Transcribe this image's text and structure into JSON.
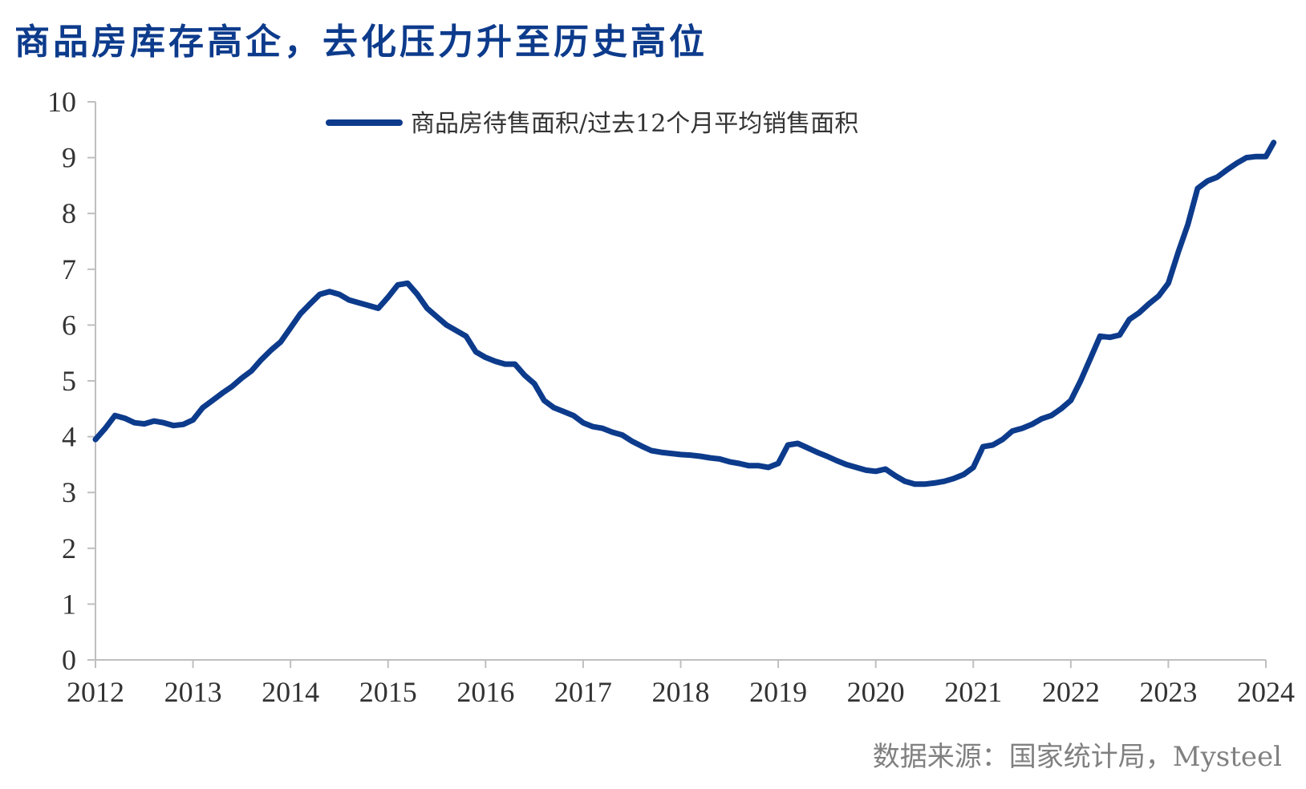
{
  "title": "商品房库存高企，去化压力升至历史高位",
  "source": "数据来源：国家统计局，Mysteel",
  "chart_data": {
    "type": "line",
    "xlabel": "",
    "ylabel": "",
    "ylim": [
      0,
      10
    ],
    "yticks": [
      "0",
      "1",
      "2",
      "3",
      "4",
      "5",
      "6",
      "7",
      "8",
      "9",
      "10"
    ],
    "xlim": [
      2012,
      2024
    ],
    "xticks": [
      "2012",
      "2013",
      "2014",
      "2015",
      "2016",
      "2017",
      "2018",
      "2019",
      "2020",
      "2021",
      "2022",
      "2023",
      "2024"
    ],
    "grid": false,
    "legend_position": "top",
    "series": [
      {
        "name": "商品房待售面积/过去12个月平均销售面积",
        "color": "#0d3b8c",
        "x": [
          2012.0,
          2012.1,
          2012.2,
          2012.3,
          2012.4,
          2012.5,
          2012.6,
          2012.7,
          2012.8,
          2012.9,
          2013.0,
          2013.1,
          2013.2,
          2013.3,
          2013.4,
          2013.5,
          2013.6,
          2013.7,
          2013.8,
          2013.9,
          2014.0,
          2014.1,
          2014.2,
          2014.3,
          2014.4,
          2014.5,
          2014.6,
          2014.7,
          2014.8,
          2014.9,
          2015.0,
          2015.1,
          2015.2,
          2015.3,
          2015.4,
          2015.5,
          2015.6,
          2015.7,
          2015.8,
          2015.9,
          2016.0,
          2016.1,
          2016.2,
          2016.3,
          2016.4,
          2016.5,
          2016.6,
          2016.7,
          2016.8,
          2016.9,
          2017.0,
          2017.1,
          2017.2,
          2017.3,
          2017.4,
          2017.5,
          2017.6,
          2017.7,
          2017.8,
          2017.9,
          2018.0,
          2018.1,
          2018.2,
          2018.3,
          2018.4,
          2018.5,
          2018.6,
          2018.7,
          2018.8,
          2018.9,
          2019.0,
          2019.1,
          2019.2,
          2019.3,
          2019.4,
          2019.5,
          2019.6,
          2019.7,
          2019.8,
          2019.9,
          2020.0,
          2020.1,
          2020.2,
          2020.3,
          2020.4,
          2020.5,
          2020.6,
          2020.7,
          2020.8,
          2020.9,
          2021.0,
          2021.1,
          2021.2,
          2021.3,
          2021.4,
          2021.5,
          2021.6,
          2021.7,
          2021.8,
          2021.9,
          2022.0,
          2022.1,
          2022.2,
          2022.3,
          2022.4,
          2022.5,
          2022.6,
          2022.7,
          2022.8,
          2022.9,
          2023.0,
          2023.1,
          2023.2,
          2023.3,
          2023.4,
          2023.5,
          2023.6,
          2023.7,
          2023.8,
          2023.9,
          2024.0,
          2024.08
        ],
        "values": [
          3.95,
          4.15,
          4.38,
          4.33,
          4.25,
          4.23,
          4.28,
          4.25,
          4.2,
          4.22,
          4.3,
          4.52,
          4.65,
          4.78,
          4.9,
          5.05,
          5.18,
          5.38,
          5.55,
          5.7,
          5.95,
          6.2,
          6.38,
          6.55,
          6.6,
          6.55,
          6.45,
          6.4,
          6.35,
          6.3,
          6.5,
          6.72,
          6.75,
          6.55,
          6.3,
          6.15,
          6.0,
          5.9,
          5.8,
          5.52,
          5.42,
          5.35,
          5.3,
          5.3,
          5.1,
          4.95,
          4.65,
          4.52,
          4.45,
          4.38,
          4.25,
          4.18,
          4.15,
          4.08,
          4.03,
          3.92,
          3.83,
          3.75,
          3.72,
          3.7,
          3.68,
          3.67,
          3.65,
          3.62,
          3.6,
          3.55,
          3.52,
          3.48,
          3.48,
          3.45,
          3.52,
          3.85,
          3.88,
          3.8,
          3.72,
          3.65,
          3.57,
          3.5,
          3.45,
          3.4,
          3.38,
          3.42,
          3.3,
          3.2,
          3.15,
          3.15,
          3.17,
          3.2,
          3.25,
          3.32,
          3.45,
          3.82,
          3.85,
          3.95,
          4.1,
          4.15,
          4.22,
          4.32,
          4.38,
          4.5,
          4.65,
          5.0,
          5.4,
          5.8,
          5.78,
          5.82,
          6.1,
          6.22,
          6.38,
          6.52,
          6.75,
          7.3,
          7.8,
          8.45,
          8.58,
          8.65,
          8.78,
          8.9,
          9.0,
          9.02,
          9.02,
          9.27
        ]
      }
    ]
  }
}
